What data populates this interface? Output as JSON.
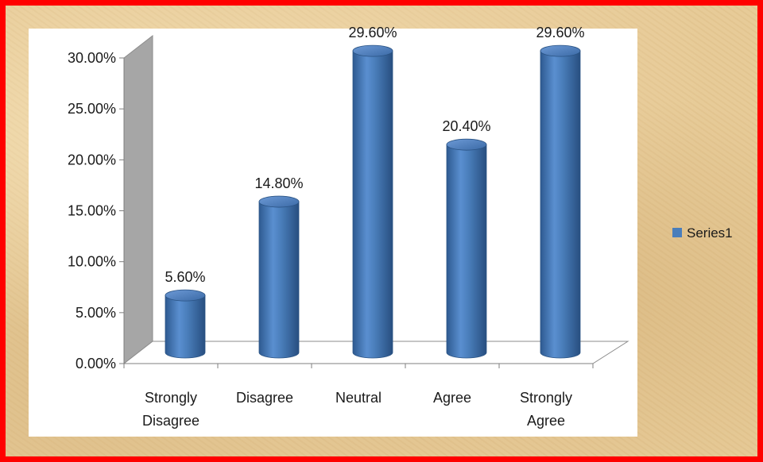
{
  "chart_data": {
    "type": "bar",
    "categories": [
      [
        "Strongly",
        "Disagree"
      ],
      [
        "Disagree"
      ],
      [
        "Neutral"
      ],
      [
        "Agree"
      ],
      [
        "Strongly",
        "Agree"
      ]
    ],
    "series": [
      {
        "name": "Series1",
        "values": [
          5.6,
          14.8,
          29.6,
          20.4,
          29.6
        ],
        "data_labels": [
          "5.60%",
          "14.80%",
          "29.60%",
          "20.40%",
          "29.60%"
        ]
      }
    ],
    "yticks": [
      "0.00%",
      "5.00%",
      "10.00%",
      "15.00%",
      "20.00%",
      "25.00%",
      "30.00%"
    ],
    "ylim": [
      0,
      30
    ],
    "title": "",
    "xlabel": "",
    "ylabel": "",
    "legend_position": "right",
    "bar_color": "#4a7ebb",
    "frame_color": "#ff0000",
    "plot_background": "#ffffff"
  }
}
